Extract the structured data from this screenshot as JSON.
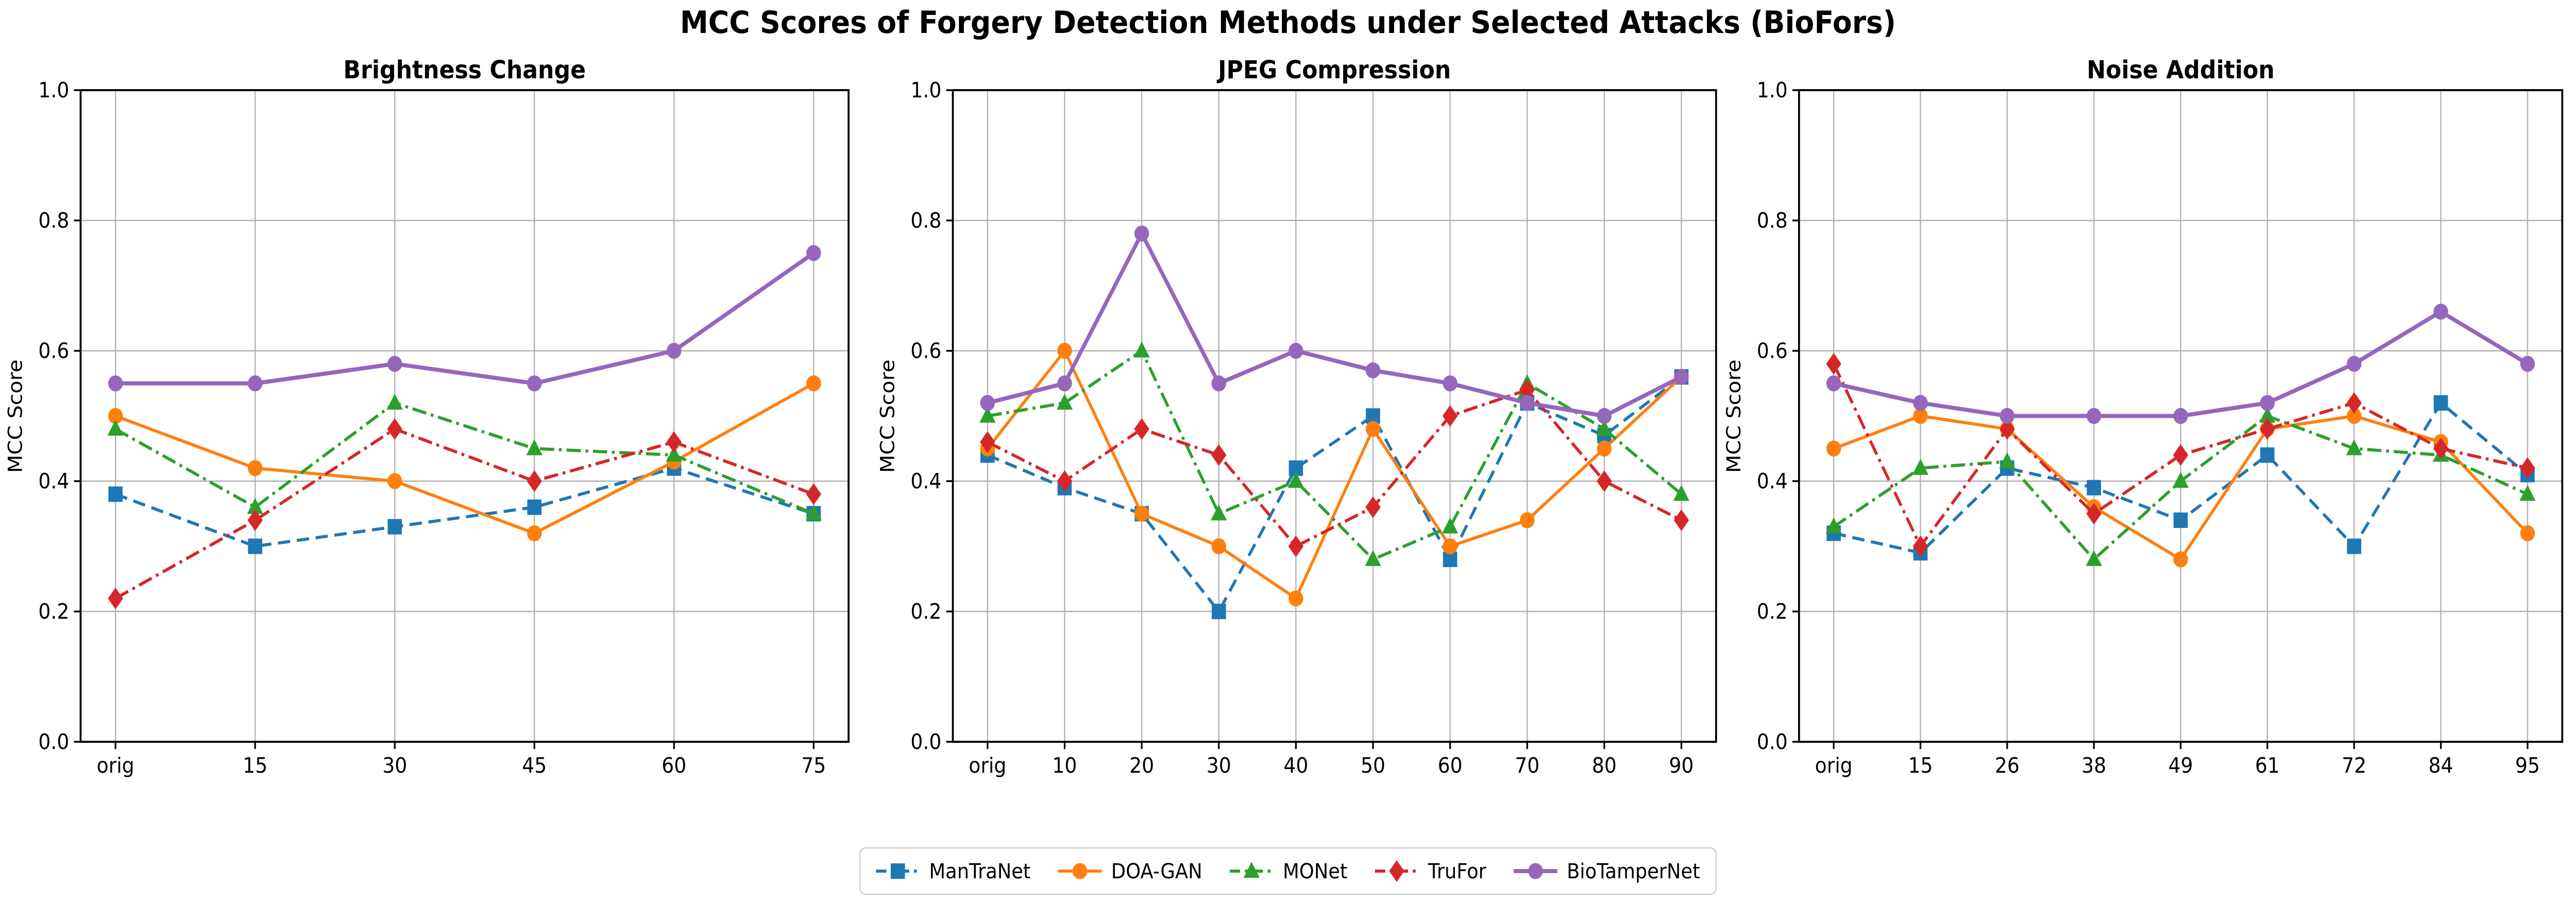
{
  "title": "MCC Scores of Forgery Detection Methods under Selected Attacks (BioFors)",
  "y_tick_labels": [
    "0.0",
    "0.2",
    "0.4",
    "0.6",
    "0.8",
    "1.0"
  ],
  "legend": {
    "position": "lower center",
    "entries": [
      {
        "label": "ManTraNet",
        "color": "#1f77b4",
        "linestyle": "dashed",
        "marker": "square"
      },
      {
        "label": "DOA-GAN",
        "color": "#ff7f0e",
        "linestyle": "solid",
        "marker": "circle"
      },
      {
        "label": "MONet",
        "color": "#2ca02c",
        "linestyle": "dashdot",
        "marker": "triangle"
      },
      {
        "label": "TruFor",
        "color": "#d62728",
        "linestyle": "dashdot",
        "marker": "diamond"
      },
      {
        "label": "BioTamperNet",
        "color": "#9467bd",
        "linestyle": "solid",
        "marker": "circle"
      }
    ]
  },
  "chart_data": [
    {
      "type": "line",
      "title": "Brightness Change",
      "xlabel": "",
      "ylabel": "MCC Score",
      "ylim": [
        0.0,
        1.0
      ],
      "grid": true,
      "categories": [
        "orig",
        "15",
        "30",
        "45",
        "60",
        "75"
      ],
      "series": [
        {
          "name": "ManTraNet",
          "values": [
            0.38,
            0.3,
            0.33,
            0.36,
            0.42,
            0.35
          ]
        },
        {
          "name": "DOA-GAN",
          "values": [
            0.5,
            0.42,
            0.4,
            0.32,
            0.43,
            0.55
          ]
        },
        {
          "name": "MONet",
          "values": [
            0.48,
            0.36,
            0.52,
            0.45,
            0.44,
            0.35
          ]
        },
        {
          "name": "TruFor",
          "values": [
            0.22,
            0.34,
            0.48,
            0.4,
            0.46,
            0.38
          ]
        },
        {
          "name": "BioTamperNet",
          "values": [
            0.55,
            0.55,
            0.58,
            0.55,
            0.6,
            0.75
          ]
        }
      ]
    },
    {
      "type": "line",
      "title": "JPEG Compression",
      "xlabel": "",
      "ylabel": "MCC Score",
      "ylim": [
        0.0,
        1.0
      ],
      "grid": true,
      "categories": [
        "orig",
        "10",
        "20",
        "30",
        "40",
        "50",
        "60",
        "70",
        "80",
        "90"
      ],
      "series": [
        {
          "name": "ManTraNet",
          "values": [
            0.44,
            0.39,
            0.35,
            0.2,
            0.42,
            0.5,
            0.28,
            0.52,
            0.47,
            0.56
          ]
        },
        {
          "name": "DOA-GAN",
          "values": [
            0.45,
            0.6,
            0.35,
            0.3,
            0.22,
            0.48,
            0.3,
            0.34,
            0.45,
            0.56
          ]
        },
        {
          "name": "MONet",
          "values": [
            0.5,
            0.52,
            0.6,
            0.35,
            0.4,
            0.28,
            0.33,
            0.55,
            0.48,
            0.38
          ]
        },
        {
          "name": "TruFor",
          "values": [
            0.46,
            0.4,
            0.48,
            0.44,
            0.3,
            0.36,
            0.5,
            0.54,
            0.4,
            0.34
          ]
        },
        {
          "name": "BioTamperNet",
          "values": [
            0.52,
            0.55,
            0.78,
            0.55,
            0.6,
            0.57,
            0.55,
            0.52,
            0.5,
            0.56
          ]
        }
      ]
    },
    {
      "type": "line",
      "title": "Noise Addition",
      "xlabel": "",
      "ylabel": "MCC Score",
      "ylim": [
        0.0,
        1.0
      ],
      "grid": true,
      "categories": [
        "orig",
        "15",
        "26",
        "38",
        "49",
        "61",
        "72",
        "84",
        "95"
      ],
      "series": [
        {
          "name": "ManTraNet",
          "values": [
            0.32,
            0.29,
            0.42,
            0.39,
            0.34,
            0.44,
            0.3,
            0.52,
            0.41
          ]
        },
        {
          "name": "DOA-GAN",
          "values": [
            0.45,
            0.5,
            0.48,
            0.36,
            0.28,
            0.48,
            0.5,
            0.46,
            0.32
          ]
        },
        {
          "name": "MONet",
          "values": [
            0.33,
            0.42,
            0.43,
            0.28,
            0.4,
            0.5,
            0.45,
            0.44,
            0.38
          ]
        },
        {
          "name": "TruFor",
          "values": [
            0.58,
            0.3,
            0.48,
            0.35,
            0.44,
            0.48,
            0.52,
            0.45,
            0.42
          ]
        },
        {
          "name": "BioTamperNet",
          "values": [
            0.55,
            0.52,
            0.5,
            0.5,
            0.5,
            0.52,
            0.58,
            0.66,
            0.58
          ]
        }
      ]
    }
  ]
}
